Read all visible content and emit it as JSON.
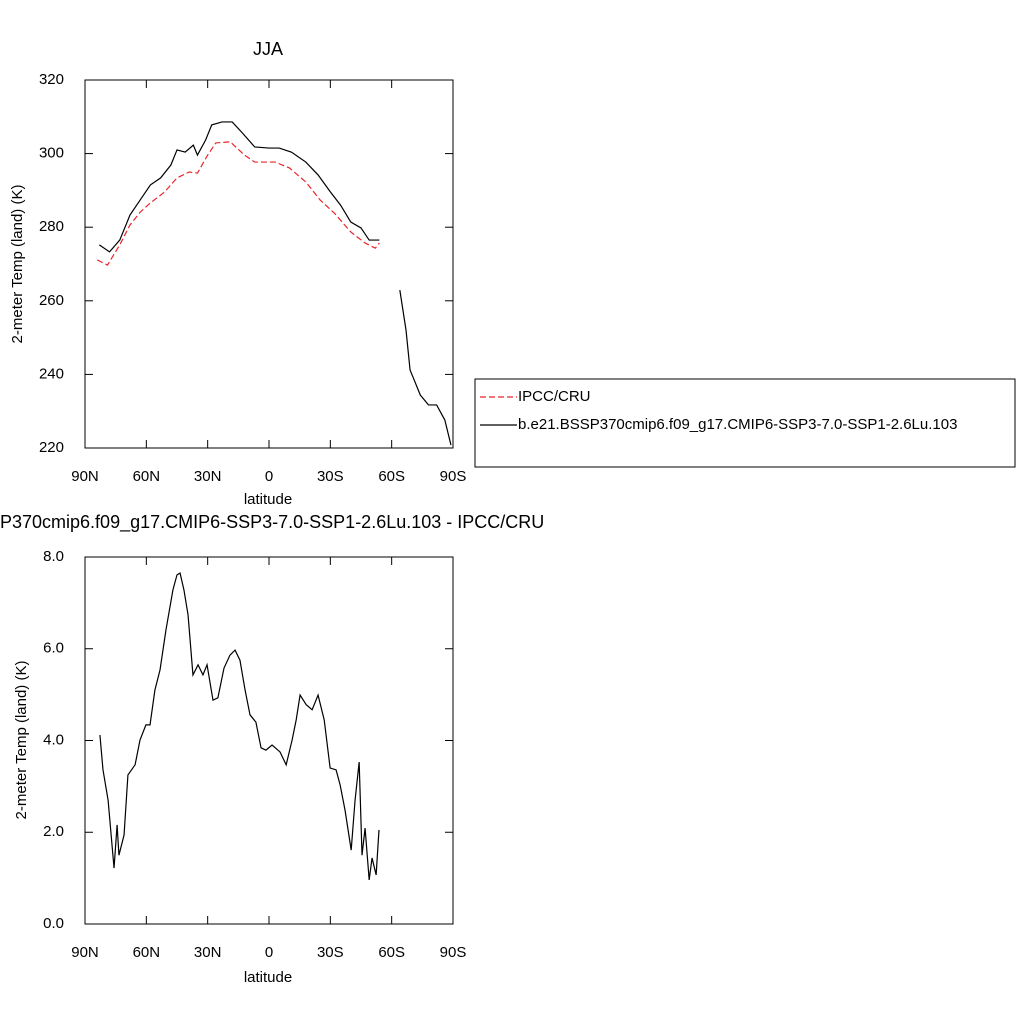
{
  "chart_data": [
    {
      "type": "line",
      "title": "JJA",
      "xlabel": "latitude",
      "ylabel": "2-meter Temp (land) (K)",
      "xlim": [
        90,
        -90
      ],
      "xticks": [
        {
          "value": 90,
          "label": "90N"
        },
        {
          "value": 60,
          "label": "60N"
        },
        {
          "value": 30,
          "label": "30N"
        },
        0,
        {
          "value": -30,
          "label": "30S"
        },
        {
          "value": -60,
          "label": "60S"
        },
        {
          "value": -90,
          "label": "90S"
        }
      ],
      "ylim": [
        220,
        320
      ],
      "yticks": [
        220,
        240,
        260,
        280,
        300,
        320
      ],
      "legend": "right",
      "series": [
        {
          "name": "IPCC/CRU",
          "color": "#e8262a",
          "dash": true,
          "x": [
            84,
            79,
            73,
            68,
            63,
            58,
            51,
            45,
            39,
            35,
            30,
            26,
            19,
            12,
            7,
            -3,
            -10,
            -18,
            -25,
            -32,
            -40,
            -47,
            -52,
            -54
          ],
          "values": [
            271.1,
            269.7,
            275.2,
            280.6,
            284.1,
            286.6,
            289.6,
            293.4,
            295,
            294.7,
            299.6,
            302.9,
            303.2,
            299.6,
            297.7,
            297.7,
            296.1,
            292.3,
            287.4,
            283.8,
            278.7,
            275.7,
            274.3,
            275.7
          ]
        },
        {
          "name": "b.e21.BSSP370cmip6.f09_g17.CMIP6-SSP3-7.0-SSP1-2.6Lu.103",
          "color": "#000000",
          "dash": false,
          "x": [
            83,
            78,
            73,
            68,
            63,
            58,
            53,
            48,
            45,
            41,
            37,
            35,
            31,
            28,
            23,
            18,
            13,
            7,
            0,
            -5,
            -11,
            -18,
            -24,
            -30,
            -35,
            -40,
            -45,
            -49,
            -54,
            null,
            -64,
            -67,
            -69,
            -71,
            -74,
            -78,
            -82,
            -86,
            -89
          ],
          "values": [
            275.2,
            273.3,
            276.5,
            283.3,
            287.4,
            291.5,
            293.4,
            296.9,
            301,
            300.4,
            302.3,
            299.6,
            303.7,
            307.8,
            308.6,
            308.6,
            305.6,
            301.8,
            301.5,
            301.5,
            300.4,
            297.7,
            294.2,
            289.6,
            286,
            281.4,
            279.8,
            276.5,
            276.5,
            null,
            262.9,
            252.1,
            241.2,
            238.5,
            234.4,
            231.7,
            231.7,
            227.6,
            220.8
          ]
        }
      ]
    },
    {
      "type": "line",
      "title": "P370cmip6.f09_g17.CMIP6-SSP3-7.0-SSP1-2.6Lu.103 - IPCC/CRU",
      "xlabel": "latitude",
      "ylabel": "2-meter Temp (land) (K)",
      "xlim": [
        90,
        -90
      ],
      "xticks": [
        {
          "value": 90,
          "label": "90N"
        },
        {
          "value": 60,
          "label": "60N"
        },
        {
          "value": 30,
          "label": "30N"
        },
        0,
        {
          "value": -30,
          "label": "30S"
        },
        {
          "value": -60,
          "label": "60S"
        },
        {
          "value": -90,
          "label": "90S"
        }
      ],
      "ylim": [
        0,
        8
      ],
      "yticks": [
        {
          "value": 0,
          "label": "0.0"
        },
        {
          "value": 2,
          "label": "2.0"
        },
        {
          "value": 4,
          "label": "4.0"
        },
        {
          "value": 6,
          "label": "6.0"
        },
        {
          "value": 8,
          "label": "8.0"
        }
      ],
      "series": [
        {
          "color": "#000000",
          "dash": false,
          "x": [
            82.7,
            81.2,
            78.7,
            75.8,
            74.3,
            73.4,
            70.9,
            69,
            65.5,
            63.1,
            60.2,
            58.2,
            55.8,
            53.3,
            50.4,
            47,
            45,
            43.5,
            41.6,
            39.6,
            37.2,
            34.7,
            32.3,
            30.3,
            27.4,
            25,
            22,
            19.1,
            16.6,
            14.2,
            11.7,
            9.3,
            6.4,
            3.9,
            1.5,
            -1.5,
            -5.4,
            -8.4,
            -11.3,
            -13.3,
            -15.2,
            -18.2,
            -21.1,
            -24,
            -27,
            -29.9,
            -32.8,
            -34.8,
            -37.2,
            -40.2,
            -42.1,
            -44.1,
            -45.5,
            -47,
            -49,
            -50.4,
            -52.4,
            -53.8
          ],
          "values": [
            4.12,
            3.36,
            2.7,
            1.22,
            2.16,
            1.5,
            1.94,
            3.25,
            3.47,
            4.01,
            4.34,
            4.34,
            5.1,
            5.54,
            6.41,
            7.28,
            7.61,
            7.65,
            7.28,
            6.74,
            5.43,
            5.65,
            5.43,
            5.65,
            4.88,
            4.93,
            5.58,
            5.86,
            5.97,
            5.75,
            5.1,
            4.56,
            4.4,
            3.84,
            3.79,
            3.9,
            3.75,
            3.47,
            4.01,
            4.45,
            4.99,
            4.78,
            4.67,
            4.99,
            4.45,
            3.4,
            3.36,
            3.03,
            2.48,
            1.61,
            2.7,
            3.53,
            1.5,
            2.09,
            0.96,
            1.44,
            1.07,
            2.05
          ]
        }
      ]
    }
  ]
}
